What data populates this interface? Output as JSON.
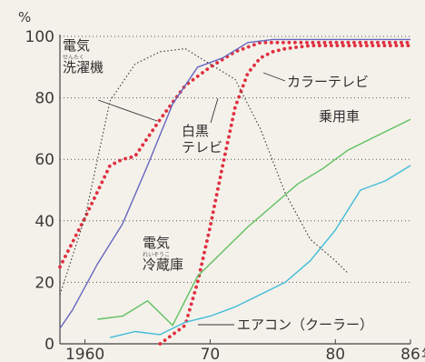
{
  "chart_data": {
    "type": "line",
    "unit_label": "%",
    "x_unit": "年",
    "xlim": [
      1958,
      1986
    ],
    "ylim": [
      0,
      100
    ],
    "x_ticks": [
      {
        "value": 1960,
        "label": "1960"
      },
      {
        "value": 1970,
        "label": "70"
      },
      {
        "value": 1980,
        "label": "80"
      },
      {
        "value": 1986,
        "label": "86"
      }
    ],
    "y_ticks": [
      {
        "value": 0,
        "label": "0"
      },
      {
        "value": 20,
        "label": "20"
      },
      {
        "value": 40,
        "label": "40"
      },
      {
        "value": 60,
        "label": "60"
      },
      {
        "value": 80,
        "label": "80"
      },
      {
        "value": 100,
        "label": "100"
      }
    ],
    "grid": {
      "horizontal": "dotted",
      "vertical": "none"
    },
    "series": [
      {
        "key": "washer",
        "name": "電気洗濯機",
        "label_lines": [
          "電気",
          "洗濯機"
        ],
        "ruby": "せんたく",
        "color": "#e03040",
        "style": "dotted-heavy",
        "x": [
          1958,
          1960,
          1962,
          1963,
          1964,
          1966,
          1968,
          1970,
          1972,
          1974,
          1976,
          1978,
          1980,
          1982,
          1984,
          1986
        ],
        "y": [
          25,
          41,
          58,
          60,
          61,
          73,
          84,
          90,
          95,
          98,
          98,
          98,
          98,
          98,
          98,
          98
        ]
      },
      {
        "key": "fridge",
        "name": "電気冷蔵庫",
        "label_lines": [
          "電気",
          "冷蔵庫"
        ],
        "ruby": "れいぞうこ",
        "color": "#6666c0",
        "style": "solid",
        "x": [
          1958,
          1959,
          1961,
          1963,
          1965,
          1967,
          1969,
          1971,
          1973,
          1975,
          1977,
          1979,
          1981,
          1983,
          1985,
          1986
        ],
        "y": [
          5,
          11,
          26,
          39,
          58,
          78,
          90,
          93,
          98,
          99,
          99,
          99,
          99,
          99,
          99,
          99
        ]
      },
      {
        "key": "color_tv",
        "name": "カラーテレビ",
        "label_lines": [
          "カラーテレビ"
        ],
        "color": "#e03040",
        "style": "dotted-heavy",
        "x": [
          1966,
          1968,
          1969,
          1970,
          1971,
          1972,
          1973,
          1974,
          1975,
          1976,
          1978,
          1980,
          1982,
          1984,
          1986
        ],
        "y": [
          0,
          6,
          20,
          38,
          58,
          77,
          88,
          93,
          95,
          96,
          97,
          97,
          97,
          97,
          97
        ]
      },
      {
        "key": "bw_tv",
        "name": "白黒テレビ",
        "label_lines": [
          "白黒",
          "テレビ"
        ],
        "color": "#333333",
        "style": "dotted-thin",
        "x": [
          1958,
          1960,
          1962,
          1964,
          1966,
          1968,
          1970,
          1972,
          1974,
          1976,
          1978,
          1980,
          1981
        ],
        "y": [
          16,
          41,
          79,
          91,
          95,
          96,
          91,
          86,
          70,
          49,
          34,
          27,
          23
        ]
      },
      {
        "key": "car",
        "name": "乗用車",
        "label_lines": [
          "乗用車"
        ],
        "color": "#5fc060",
        "style": "solid",
        "x": [
          1961,
          1963,
          1965,
          1967,
          1969,
          1971,
          1973,
          1975,
          1977,
          1979,
          1981,
          1983,
          1985,
          1986
        ],
        "y": [
          8,
          9,
          14,
          6,
          22,
          30,
          38,
          45,
          52,
          57,
          63,
          67,
          71,
          73
        ]
      },
      {
        "key": "ac",
        "name": "エアコン（クーラー）",
        "label_lines": [
          "エアコン（クーラー）"
        ],
        "color": "#40bcd8",
        "style": "solid",
        "x": [
          1962,
          1964,
          1966,
          1968,
          1970,
          1972,
          1974,
          1976,
          1978,
          1980,
          1982,
          1984,
          1986
        ],
        "y": [
          2,
          4,
          3,
          7,
          9,
          12,
          16,
          20,
          27,
          37,
          50,
          53,
          58
        ]
      }
    ]
  }
}
